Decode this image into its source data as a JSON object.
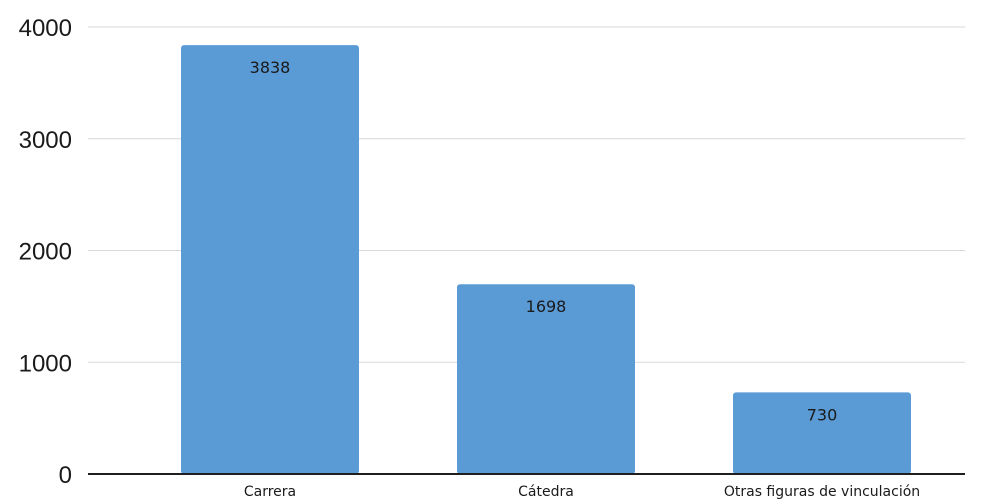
{
  "chart_data": {
    "type": "bar",
    "title": "",
    "xlabel": "",
    "ylabel": "",
    "categories": [
      "Carrera",
      "Cátedra",
      "Otras figuras de vinculación"
    ],
    "values": [
      3838,
      1698,
      730
    ],
    "data_labels": [
      "3838",
      "1698",
      "730"
    ],
    "ylim": [
      0,
      4000
    ],
    "yticks": [
      0,
      1000,
      2000,
      3000,
      4000
    ],
    "ytick_labels": [
      "0",
      "1000",
      "2000",
      "3000",
      "4000"
    ],
    "grid": true,
    "legend": "none",
    "colors": {
      "bar": "#5b9bd5",
      "grid": "#d9d9d9",
      "axis": "#1f1f1f",
      "text": "#1a1a1a"
    }
  }
}
